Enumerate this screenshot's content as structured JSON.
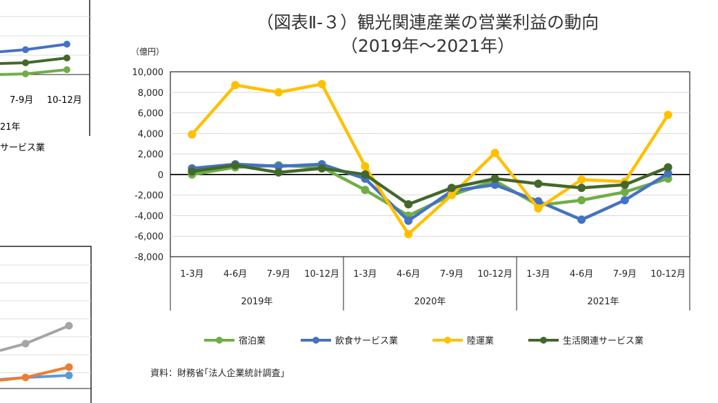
{
  "chart_data": {
    "type": "line",
    "title": "（図表Ⅱ-３）観光関連産業の営業利益の動向",
    "subtitle": "（2019年～2021年）",
    "ylabel": "（億円）",
    "ylim": [
      -8000,
      10000
    ],
    "yticks": [
      "10,000",
      "8,000",
      "6,000",
      "4,000",
      "2,000",
      "0",
      "-2,000",
      "-4,000",
      "-6,000",
      "-8,000"
    ],
    "ytick_values": [
      10000,
      8000,
      6000,
      4000,
      2000,
      0,
      -2000,
      -4000,
      -6000,
      -8000
    ],
    "grid": true,
    "legend_position": "bottom",
    "categories": [
      "1-3月",
      "4-6月",
      "7-9月",
      "10-12月",
      "1-3月",
      "4-6月",
      "7-9月",
      "10-12月",
      "1-3月",
      "4-6月",
      "7-9月",
      "10-12月"
    ],
    "groups": [
      "2019年",
      "2020年",
      "2021年"
    ],
    "series": [
      {
        "name": "宿泊業",
        "color": "#70ad47",
        "values": [
          0,
          700,
          900,
          700,
          -1500,
          -4000,
          -2000,
          -600,
          -3000,
          -2500,
          -1700,
          -400
        ]
      },
      {
        "name": "飲食サービス業",
        "color": "#4472c4",
        "values": [
          600,
          1000,
          800,
          1000,
          -400,
          -4500,
          -1600,
          -1000,
          -2600,
          -4400,
          -2500,
          100
        ]
      },
      {
        "name": "陸運業",
        "color": "#ffc000",
        "values": [
          3900,
          8700,
          8000,
          8800,
          800,
          -5800,
          -2000,
          2100,
          -3300,
          -500,
          -700,
          5800
        ]
      },
      {
        "name": "生活関連サービス業",
        "color": "#43682b",
        "values": [
          300,
          900,
          200,
          600,
          0,
          -2900,
          -1300,
          -400,
          -900,
          -1300,
          -1000,
          700
        ]
      }
    ],
    "source": "資料：財務省｢法人企業統計調査｣"
  },
  "background_fragment": {
    "tick_labels": [
      "7-9月",
      "10-12月"
    ],
    "group_label": "21年",
    "legend_fragment": "サービス業"
  }
}
